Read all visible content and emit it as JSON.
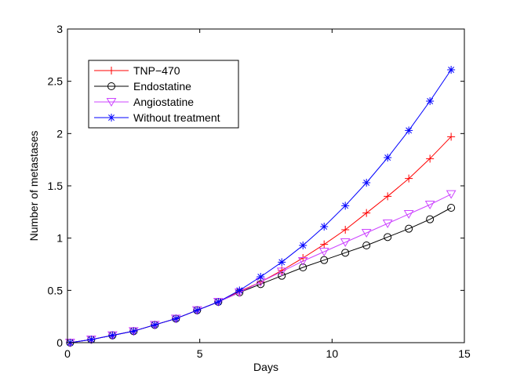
{
  "chart_data": {
    "type": "line",
    "title": "",
    "xlabel": "Days",
    "ylabel": "Number of metastases",
    "xlim": [
      0,
      15
    ],
    "ylim": [
      0,
      3
    ],
    "xticks": [
      0,
      5,
      10,
      15
    ],
    "yticks": [
      0,
      0.5,
      1,
      1.5,
      2,
      2.5,
      3
    ],
    "xtick_labels": [
      "0",
      "5",
      "10",
      "15"
    ],
    "ytick_labels": [
      "0",
      "0.5",
      "1",
      "1.5",
      "2",
      "2.5",
      "3"
    ],
    "legend_position": "top-left",
    "x": [
      0.1,
      0.9,
      1.7,
      2.5,
      3.3,
      4.1,
      4.9,
      5.7,
      6.5,
      7.3,
      8.1,
      8.9,
      9.7,
      10.5,
      11.3,
      12.1,
      12.9,
      13.7,
      14.5
    ],
    "series": [
      {
        "name": "TNP−470",
        "color": "#ff0000",
        "marker": "plus",
        "values": [
          0.0,
          0.03,
          0.07,
          0.11,
          0.17,
          0.23,
          0.31,
          0.39,
          0.49,
          0.58,
          0.69,
          0.81,
          0.94,
          1.08,
          1.24,
          1.4,
          1.57,
          1.76,
          1.97
        ]
      },
      {
        "name": "Endostatine",
        "color": "#000000",
        "marker": "circle",
        "values": [
          0.0,
          0.03,
          0.07,
          0.11,
          0.17,
          0.23,
          0.31,
          0.39,
          0.48,
          0.56,
          0.64,
          0.72,
          0.79,
          0.86,
          0.93,
          1.01,
          1.09,
          1.18,
          1.29
        ]
      },
      {
        "name": "Angiostatine",
        "color": "#cc44ff",
        "marker": "triangle-down",
        "values": [
          0.0,
          0.03,
          0.07,
          0.11,
          0.17,
          0.23,
          0.31,
          0.39,
          0.48,
          0.58,
          0.68,
          0.78,
          0.87,
          0.96,
          1.05,
          1.14,
          1.23,
          1.32,
          1.42
        ]
      },
      {
        "name": "Without treatment",
        "color": "#0000ff",
        "marker": "asterisk",
        "values": [
          0.0,
          0.03,
          0.07,
          0.11,
          0.17,
          0.23,
          0.31,
          0.39,
          0.5,
          0.63,
          0.77,
          0.93,
          1.11,
          1.31,
          1.53,
          1.77,
          2.03,
          2.31,
          2.61
        ]
      }
    ]
  }
}
